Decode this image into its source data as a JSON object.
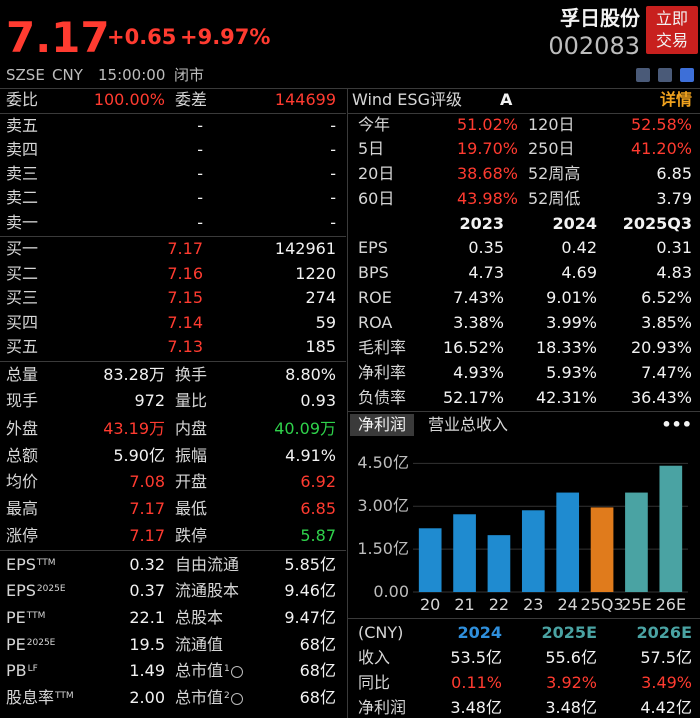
{
  "header": {
    "price": "7.17",
    "change": "+0.65",
    "change_pct": "+9.97%",
    "name": "孚日股份",
    "code": "002083",
    "trade_button": [
      "立即",
      "交易"
    ],
    "exchange": "SZSE",
    "currency": "CNY",
    "time": "15:00:00",
    "status": "闭市"
  },
  "order_book": {
    "ratio_label": "委比",
    "ratio": "100.00%",
    "diff_label": "委差",
    "diff": "144699",
    "asks": [
      [
        "卖五",
        "-",
        "-"
      ],
      [
        "卖四",
        "-",
        "-"
      ],
      [
        "卖三",
        "-",
        "-"
      ],
      [
        "卖二",
        "-",
        "-"
      ],
      [
        "卖一",
        "-",
        "-"
      ]
    ],
    "bids": [
      [
        "买一",
        "7.17",
        "142961"
      ],
      [
        "买二",
        "7.16",
        "1220"
      ],
      [
        "买三",
        "7.15",
        "274"
      ],
      [
        "买四",
        "7.14",
        "59"
      ],
      [
        "买五",
        "7.13",
        "185"
      ]
    ]
  },
  "quote_stats": [
    [
      "总量",
      "83.28万",
      "换手",
      "8.80%"
    ],
    [
      "现手",
      "972",
      "量比",
      "0.93"
    ],
    [
      "外盘",
      "43.19万",
      "内盘",
      "40.09万"
    ],
    [
      "总额",
      "5.90亿",
      "振幅",
      "4.91%"
    ],
    [
      "均价",
      "7.08",
      "开盘",
      "6.92"
    ],
    [
      "最高",
      "7.17",
      "最低",
      "6.85"
    ],
    [
      "涨停",
      "7.17",
      "跌停",
      "5.87"
    ]
  ],
  "valuation": [
    {
      "label": "EPS",
      "sup": "TTM",
      "value": "0.32",
      "label2": "自由流通",
      "value2": "5.85亿"
    },
    {
      "label": "EPS",
      "sup": "2025E",
      "value": "0.37",
      "label2": "流通股本",
      "value2": "9.46亿"
    },
    {
      "label": "PE",
      "sup": "TTM",
      "value": "22.1",
      "label2": "总股本",
      "value2": "9.47亿"
    },
    {
      "label": "PE",
      "sup": "2025E",
      "value": "19.5",
      "label2": "流通值",
      "value2": "68亿"
    },
    {
      "label": "PB",
      "sup": "LF",
      "value": "1.49",
      "label2": "总市值",
      "sup2": "1",
      "value2": "68亿"
    },
    {
      "label": "股息率",
      "sup": "TTM",
      "value": "2.00",
      "label2": "总市值",
      "sup2": "2",
      "value2": "68亿"
    }
  ],
  "esg": {
    "label": "Wind ESG评级",
    "rating": "A",
    "link": "详情"
  },
  "returns": [
    [
      "今年",
      "51.02%",
      "120日",
      "52.58%"
    ],
    [
      "5日",
      "19.70%",
      "250日",
      "41.20%"
    ],
    [
      "20日",
      "38.68%",
      "52周高",
      "6.85"
    ],
    [
      "60日",
      "43.98%",
      "52周低",
      "3.79"
    ]
  ],
  "financials": {
    "columns": [
      "2023",
      "2024",
      "2025Q3"
    ],
    "rows": [
      [
        "EPS",
        "0.35",
        "0.42",
        "0.31"
      ],
      [
        "BPS",
        "4.73",
        "4.69",
        "4.83"
      ],
      [
        "ROE",
        "7.43%",
        "9.01%",
        "6.52%"
      ],
      [
        "ROA",
        "3.38%",
        "3.99%",
        "3.85%"
      ],
      [
        "毛利率",
        "16.52%",
        "18.33%",
        "20.93%"
      ],
      [
        "净利率",
        "4.93%",
        "5.93%",
        "7.47%"
      ],
      [
        "负债率",
        "52.17%",
        "42.31%",
        "36.43%"
      ]
    ]
  },
  "chart_tabs": {
    "tabs": [
      "净利润",
      "营业总收入"
    ],
    "more": "•••"
  },
  "chart_data": {
    "type": "bar",
    "categories": [
      "20",
      "21",
      "22",
      "23",
      "24",
      "25Q3",
      "25E",
      "26E"
    ],
    "values": [
      2.23,
      2.72,
      1.99,
      2.86,
      3.48,
      2.96,
      3.48,
      4.42
    ],
    "colors": [
      "#1f8bd0",
      "#1f8bd0",
      "#1f8bd0",
      "#1f8bd0",
      "#1f8bd0",
      "#e07b1c",
      "#4aa3a3",
      "#4aa3a3"
    ],
    "ylim": [
      0,
      4.9
    ],
    "yticks": [
      {
        "value": 0,
        "label": "0.00"
      },
      {
        "value": 1.5,
        "label": "1.50亿"
      },
      {
        "value": 3,
        "label": "3.00亿"
      },
      {
        "value": 4.5,
        "label": "4.50亿"
      }
    ],
    "grid": true
  },
  "forecast": {
    "columns": [
      "(CNY)",
      "2024",
      "2025E",
      "2026E"
    ],
    "rows": [
      [
        "收入",
        "53.5亿",
        "55.6亿",
        "57.5亿"
      ],
      [
        "同比",
        "0.11%",
        "3.92%",
        "3.49%"
      ],
      [
        "净利润",
        "3.48亿",
        "3.48亿",
        "4.42亿"
      ]
    ]
  }
}
